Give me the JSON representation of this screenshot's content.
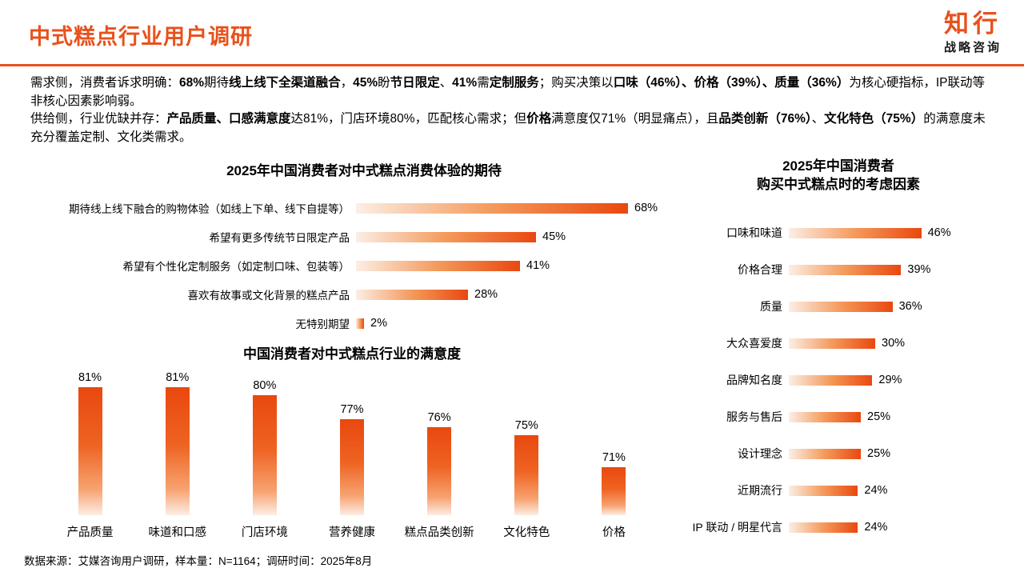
{
  "header": {
    "title": "中式糕点行业用户调研",
    "brand": "知行",
    "brand_sub": "战略咨询"
  },
  "summary": {
    "p1": [
      {
        "t": "需求侧，消费者诉求明确：",
        "b": false
      },
      {
        "t": "68%",
        "b": true
      },
      {
        "t": "期待",
        "b": false
      },
      {
        "t": "线上线下全渠道融合",
        "b": true
      },
      {
        "t": "，",
        "b": false
      },
      {
        "t": "45%",
        "b": true
      },
      {
        "t": "盼",
        "b": false
      },
      {
        "t": "节日限定",
        "b": true
      },
      {
        "t": "、",
        "b": false
      },
      {
        "t": "41%",
        "b": true
      },
      {
        "t": "需",
        "b": false
      },
      {
        "t": "定制服务",
        "b": true
      },
      {
        "t": "；购买决策以",
        "b": false
      },
      {
        "t": "口味（46%）、价格（39%）、质量（36%）",
        "b": true
      },
      {
        "t": "为核心硬指标，IP联动等非核心因素影响弱。",
        "b": false
      }
    ],
    "p2": [
      {
        "t": "供给侧，行业优缺并存：",
        "b": false
      },
      {
        "t": "产品质量、口感满意度",
        "b": true
      },
      {
        "t": "达81%，门店环境80%，匹配核心需求；但",
        "b": false
      },
      {
        "t": "价格",
        "b": true
      },
      {
        "t": "满意度仅71%（明显痛点），且",
        "b": false
      },
      {
        "t": "品类创新（76%）",
        "b": true
      },
      {
        "t": "、",
        "b": false
      },
      {
        "t": "文化特色（75%）",
        "b": true
      },
      {
        "t": "的满意度未充分覆盖定制、文化类需求。",
        "b": false
      }
    ]
  },
  "chart_data": [
    {
      "type": "bar",
      "orientation": "horizontal",
      "title": "2025年中国消费者对中式糕点消费体验的期待",
      "categories": [
        "期待线上线下融合的购物体验（如线上下单、线下自提等）",
        "希望有更多传统节日限定产品",
        "希望有个性化定制服务（如定制口味、包装等）",
        "喜欢有故事或文化背景的糕点产品",
        "无特别期望"
      ],
      "values": [
        68,
        45,
        41,
        28,
        2
      ],
      "unit": "%",
      "xlim": [
        0,
        100
      ],
      "value_labels": true,
      "grid": false,
      "legend": false
    },
    {
      "type": "bar",
      "orientation": "vertical",
      "title": "中国消费者对中式糕点行业的满意度",
      "categories": [
        "产品质量",
        "味道和口感",
        "门店环境",
        "营养健康",
        "糕点品类创新",
        "文化特色",
        "价格"
      ],
      "values": [
        81,
        81,
        80,
        77,
        76,
        75,
        71
      ],
      "unit": "%",
      "ylim": [
        65,
        85
      ],
      "value_labels": true,
      "grid": false,
      "legend": false
    },
    {
      "type": "bar",
      "orientation": "horizontal",
      "title": "2025年中国消费者\n购买中式糕点时的考虑因素",
      "categories": [
        "口味和味道",
        "价格合理",
        "质量",
        "大众喜爱度",
        "品牌知名度",
        "服务与售后",
        "设计理念",
        "近期流行",
        "IP 联动 / 明星代言"
      ],
      "values": [
        46,
        39,
        36,
        30,
        29,
        25,
        25,
        24,
        24
      ],
      "unit": "%",
      "xlim": [
        0,
        50
      ],
      "value_labels": true,
      "grid": false,
      "legend": false
    }
  ],
  "footer": {
    "source": "数据来源：艾媒咨询用户调研，样本量：N=1164；调研时间：2025年8月"
  },
  "colors": {
    "accent": "#E8511C",
    "bar_deep": "#E9480F",
    "bar_light": "#FCEEE5",
    "bar_mid": "#F49A5B"
  }
}
